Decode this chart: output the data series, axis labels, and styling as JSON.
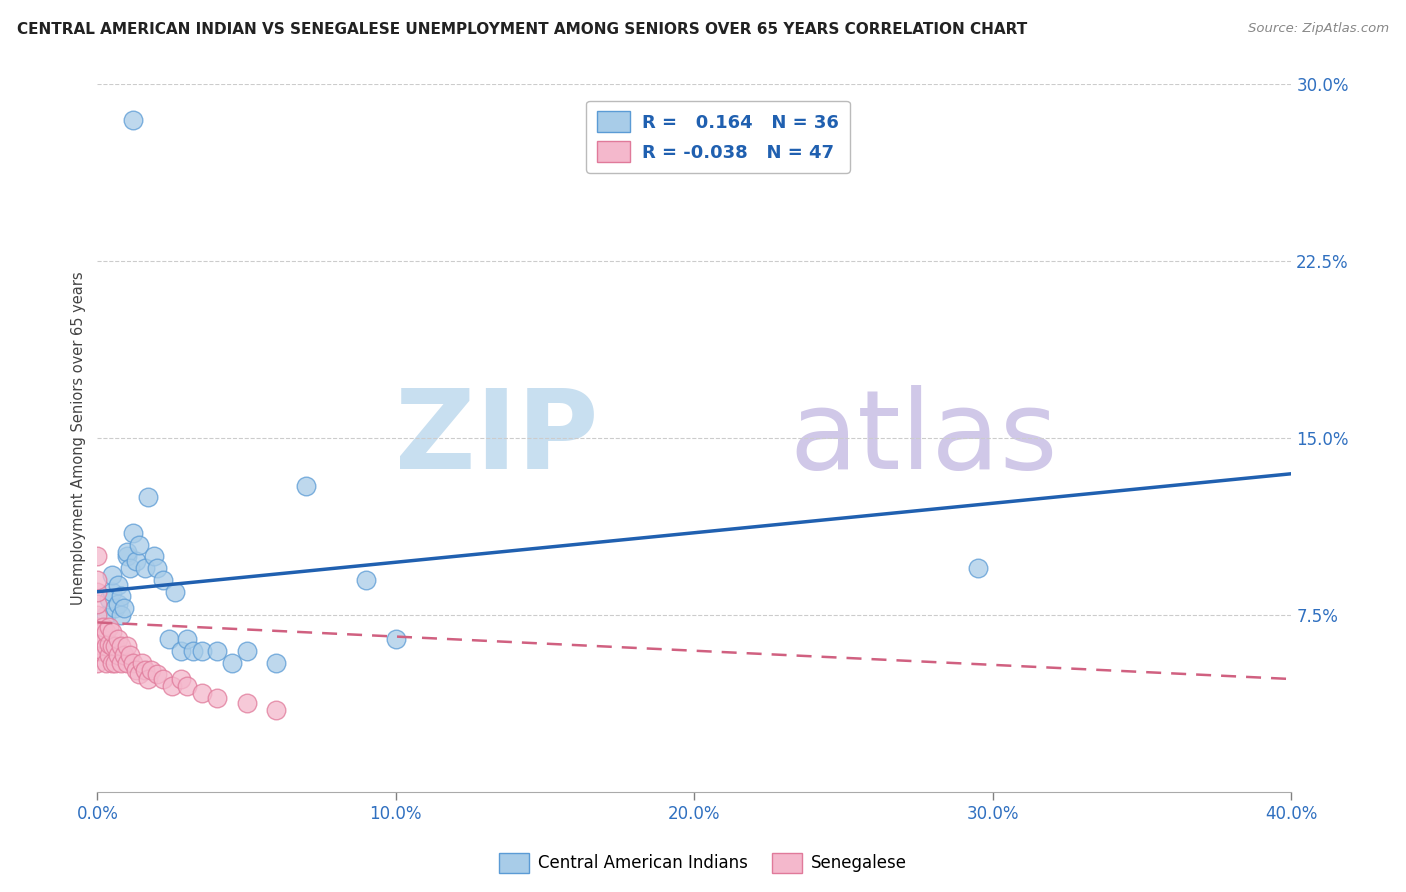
{
  "title": "CENTRAL AMERICAN INDIAN VS SENEGALESE UNEMPLOYMENT AMONG SENIORS OVER 65 YEARS CORRELATION CHART",
  "source": "Source: ZipAtlas.com",
  "ylabel": "Unemployment Among Seniors over 65 years",
  "xlim": [
    0.0,
    0.4
  ],
  "ylim": [
    0.0,
    0.3
  ],
  "xticks": [
    0.0,
    0.1,
    0.2,
    0.3,
    0.4
  ],
  "yticks": [
    0.075,
    0.15,
    0.225,
    0.3
  ],
  "ytick_labels": [
    "7.5%",
    "15.0%",
    "22.5%",
    "30.0%"
  ],
  "xtick_labels": [
    "0.0%",
    "10.0%",
    "20.0%",
    "30.0%",
    "40.0%"
  ],
  "blue_R": 0.164,
  "blue_N": 36,
  "pink_R": -0.038,
  "pink_N": 47,
  "blue_color": "#a8cce8",
  "pink_color": "#f4b8cc",
  "blue_edge_color": "#5b9bd5",
  "pink_edge_color": "#e07a9a",
  "blue_line_color": "#2060b0",
  "pink_line_color": "#d06080",
  "axis_label_color": "#3070c0",
  "watermark_zip_color": "#c8dff0",
  "watermark_atlas_color": "#d0c8e8",
  "background_color": "#ffffff",
  "grid_color": "#cccccc",
  "blue_scatter_x": [
    0.003,
    0.004,
    0.005,
    0.005,
    0.006,
    0.007,
    0.007,
    0.008,
    0.008,
    0.009,
    0.01,
    0.01,
    0.011,
    0.012,
    0.013,
    0.014,
    0.016,
    0.017,
    0.019,
    0.02,
    0.022,
    0.024,
    0.026,
    0.028,
    0.03,
    0.032,
    0.035,
    0.04,
    0.045,
    0.05,
    0.06,
    0.07,
    0.09,
    0.1,
    0.295,
    0.012
  ],
  "blue_scatter_y": [
    0.075,
    0.082,
    0.085,
    0.092,
    0.078,
    0.08,
    0.088,
    0.075,
    0.083,
    0.078,
    0.1,
    0.102,
    0.095,
    0.11,
    0.098,
    0.105,
    0.095,
    0.125,
    0.1,
    0.095,
    0.09,
    0.065,
    0.085,
    0.06,
    0.065,
    0.06,
    0.06,
    0.06,
    0.055,
    0.06,
    0.055,
    0.13,
    0.09,
    0.065,
    0.095,
    0.285
  ],
  "pink_scatter_x": [
    0.0,
    0.0,
    0.0,
    0.0,
    0.0,
    0.0,
    0.0,
    0.0,
    0.0,
    0.002,
    0.002,
    0.002,
    0.003,
    0.003,
    0.003,
    0.004,
    0.004,
    0.004,
    0.005,
    0.005,
    0.005,
    0.006,
    0.006,
    0.007,
    0.007,
    0.008,
    0.008,
    0.009,
    0.01,
    0.01,
    0.011,
    0.012,
    0.013,
    0.014,
    0.015,
    0.016,
    0.017,
    0.018,
    0.02,
    0.022,
    0.025,
    0.028,
    0.03,
    0.035,
    0.04,
    0.05,
    0.06
  ],
  "pink_scatter_y": [
    0.055,
    0.06,
    0.065,
    0.07,
    0.075,
    0.08,
    0.085,
    0.09,
    0.1,
    0.06,
    0.065,
    0.07,
    0.055,
    0.062,
    0.068,
    0.058,
    0.063,
    0.07,
    0.055,
    0.062,
    0.068,
    0.055,
    0.062,
    0.058,
    0.065,
    0.055,
    0.062,
    0.058,
    0.055,
    0.062,
    0.058,
    0.055,
    0.052,
    0.05,
    0.055,
    0.052,
    0.048,
    0.052,
    0.05,
    0.048,
    0.045,
    0.048,
    0.045,
    0.042,
    0.04,
    0.038,
    0.035
  ]
}
